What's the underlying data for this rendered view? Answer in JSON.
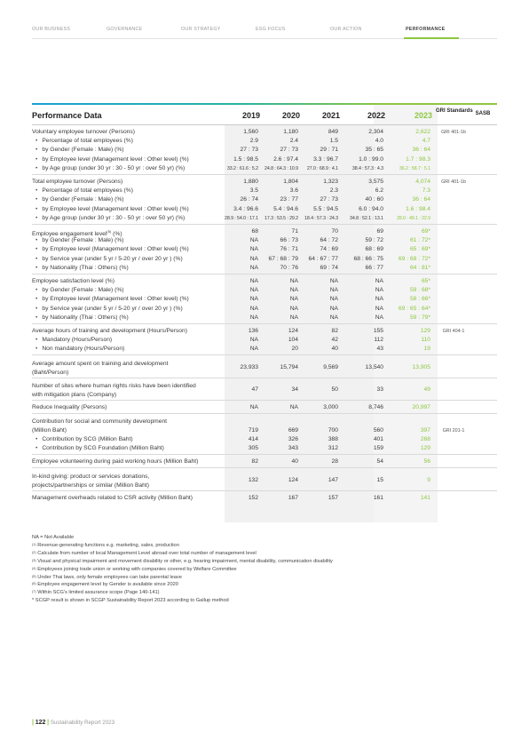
{
  "nav": {
    "items": [
      {
        "label": "OUR BUSINESS",
        "active": false
      },
      {
        "label": "GOVERNANCE",
        "active": false
      },
      {
        "label": "OUR STRATEGY",
        "active": false
      },
      {
        "label": "ESG FOCUS",
        "active": false
      },
      {
        "label": "OUR ACTION",
        "active": false
      },
      {
        "label": "PERFORMANCE",
        "active": true
      }
    ],
    "accent_color": "#8dc63f"
  },
  "table": {
    "header": {
      "title": "Performance Data",
      "years": [
        "2019",
        "2020",
        "2021",
        "2022",
        "2023"
      ],
      "gri": "GRI Standards",
      "sasb": "SASB"
    },
    "highlight_color": "#8dc63f",
    "groups": [
      {
        "rows": [
          {
            "label": "Voluntary employee turnover (Persons)",
            "sub": false,
            "values": [
              "1,560",
              "1,180",
              "849",
              "2,304",
              "2,622"
            ],
            "gri": "GRI 401-1b"
          },
          {
            "label": "Percentage of total employees (%)",
            "sub": true,
            "values": [
              "2.9",
              "2.4",
              "1.5",
              "4.0",
              "4.7"
            ]
          },
          {
            "label": "by Gender (Female : Male) (%)",
            "sub": true,
            "values": [
              "27 : 73",
              "27 : 73",
              "29 : 71",
              "35 : 65",
              "36 : 64"
            ]
          },
          {
            "label": "by Employee level (Management level : Other level) (%)",
            "sub": true,
            "values": [
              "1.5 : 98.5",
              "2.6 : 97.4",
              "3.3 : 96.7",
              "1.0 : 99.0",
              "1.7 : 98.3"
            ]
          },
          {
            "label": "by Age group (under 30 yr : 30 - 50 yr : over 50 yr) (%)",
            "sub": true,
            "small": true,
            "values": [
              "33.2 : 61.6 : 5.2",
              "24.8 : 64.3 : 10.9",
              "27.0 : 68.9 : 4.1",
              "38.4 : 57.3 : 4.3",
              "36.2 : 58.7 : 5.1"
            ]
          }
        ]
      },
      {
        "rows": [
          {
            "label": "Total employee turnover (Persons)",
            "sub": false,
            "values": [
              "1,880",
              "1,804",
              "1,323",
              "3,575",
              "4,074"
            ],
            "gri": "GRI 401-1b"
          },
          {
            "label": "Percentage of total employees (%)",
            "sub": true,
            "values": [
              "3.5",
              "3.6",
              "2.3",
              "6.2",
              "7.3"
            ]
          },
          {
            "label": "by Gender (Female : Male) (%)",
            "sub": true,
            "values": [
              "26 : 74",
              "23 : 77",
              "27 : 73",
              "40 : 60",
              "36 : 64"
            ]
          },
          {
            "label": "by Employee level (Management level : Other level) (%)",
            "sub": true,
            "values": [
              "3.4 : 96.6",
              "5.4 : 94.6",
              "5.5 : 94.5",
              "6.0 : 94.0",
              "1.6 : 98.4"
            ]
          },
          {
            "label": "by Age group (under 30 yr : 30 - 50 yr : over 50 yr) (%)",
            "sub": true,
            "small": true,
            "values": [
              "28.9 : 54.0 : 17.1",
              "17.3 : 53.5 : 29.2",
              "18.4 : 57.3 : 24.3",
              "34.8 : 52.1 : 13.1",
              "28.0 : 49.1 : 22.9"
            ]
          }
        ]
      },
      {
        "rows": [
          {
            "label": "Employee engagement level",
            "sup": "(5)",
            "label_suffix": " (%)",
            "sub": false,
            "values": [
              "68",
              "71",
              "70",
              "69",
              "69*"
            ]
          },
          {
            "label": "by Gender (Female : Male) (%)",
            "sub": true,
            "values": [
              "NA",
              "66 : 73",
              "64 : 72",
              "59 : 72",
              "61 : 72*"
            ]
          },
          {
            "label": "by Employee level (Management level : Other level) (%)",
            "sub": true,
            "values": [
              "NA",
              "76 : 71",
              "74 : 69",
              "68 : 69",
              "65 : 69*"
            ]
          },
          {
            "label": "by Service year (under 5 yr / 5-20 yr / over 20 yr ) (%)",
            "sub": true,
            "values": [
              "NA",
              "67 : 68 : 79",
              "64 : 67 : 77",
              "68 : 66 : 75",
              "69 : 68 : 72*"
            ]
          },
          {
            "label": "by Nationality (Thai : Others) (%)",
            "sub": true,
            "values": [
              "NA",
              "70 : 76",
              "69 : 74",
              "66 : 77",
              "64 : 81*"
            ]
          }
        ]
      },
      {
        "rows": [
          {
            "label": "Employee satisfaction level (%)",
            "sub": false,
            "values": [
              "NA",
              "NA",
              "NA",
              "NA",
              "65*"
            ]
          },
          {
            "label": "by Gender (Female : Male) (%)",
            "sub": true,
            "values": [
              "NA",
              "NA",
              "NA",
              "NA",
              "59 : 68*"
            ]
          },
          {
            "label": "by Employee level (Management level : Other level) (%)",
            "sub": true,
            "values": [
              "NA",
              "NA",
              "NA",
              "NA",
              "58 : 66*"
            ]
          },
          {
            "label": "by Service year (under 5 yr / 5-20 yr / over 20 yr ) (%)",
            "sub": true,
            "values": [
              "NA",
              "NA",
              "NA",
              "NA",
              "69 : 65 : 64*"
            ]
          },
          {
            "label": "by Nationality (Thai : Others) (%)",
            "sub": true,
            "values": [
              "NA",
              "NA",
              "NA",
              "NA",
              "59 : 79*"
            ]
          }
        ]
      },
      {
        "rows": [
          {
            "label": "Average hours of training and development (Hours/Person)",
            "sub": false,
            "values": [
              "136",
              "124",
              "82",
              "155",
              "129"
            ],
            "gri": "GRI 404-1"
          },
          {
            "label": "Mandatory (Hours/Person)",
            "sub": true,
            "values": [
              "NA",
              "104",
              "42",
              "112",
              "110"
            ]
          },
          {
            "label": "Non mandatory (Hours/Person)",
            "sub": true,
            "values": [
              "NA",
              "20",
              "40",
              "43",
              "19"
            ]
          }
        ]
      },
      {
        "rows": [
          {
            "label": "Average amount spent on training and development",
            "label2": "(Baht/Person)",
            "sub": false,
            "values": [
              "23,933",
              "15,794",
              "9,569",
              "13,540",
              "13,905"
            ]
          }
        ]
      },
      {
        "rows": [
          {
            "label": "Number of sites where human rights risks have been identified",
            "label2": "with mitigation plans (Company)",
            "sub": false,
            "values": [
              "47",
              "34",
              "50",
              "33",
              "49"
            ]
          }
        ]
      },
      {
        "rows": [
          {
            "label": "Reduce Inequality (Persons)",
            "sub": false,
            "values": [
              "NA",
              "NA",
              "3,000",
              "8,746",
              "20,997"
            ]
          }
        ]
      },
      {
        "rows": [
          {
            "label": "Contribution for social and community development",
            "sub": false,
            "values": [
              "",
              "",
              "",
              "",
              ""
            ]
          },
          {
            "label": "(Million Baht)",
            "sub": false,
            "values": [
              "719",
              "669",
              "700",
              "560",
              "397"
            ],
            "gri": "GRI 201-1"
          },
          {
            "label": "Contribution by SCG (Million Baht)",
            "sub": true,
            "values": [
              "414",
              "326",
              "388",
              "401",
              "268"
            ]
          },
          {
            "label": "Contribution by SCG Foundation (Million Baht)",
            "sub": true,
            "values": [
              "305",
              "343",
              "312",
              "159",
              "129"
            ]
          }
        ]
      },
      {
        "rows": [
          {
            "label": "Employee volunteering during paid working hours (Million Baht)",
            "sub": false,
            "values": [
              "82",
              "40",
              "28",
              "54",
              "56"
            ]
          }
        ]
      },
      {
        "rows": [
          {
            "label": "In-kind giving: product or services donations,",
            "label2": "projects/partnerships or similar (Million Baht)",
            "sub": false,
            "values": [
              "132",
              "124",
              "147",
              "15",
              "9"
            ]
          }
        ]
      },
      {
        "rows": [
          {
            "label": "Management overheads related to CSR activity (Million Baht)",
            "sub": false,
            "values": [
              "152",
              "167",
              "157",
              "161",
              "141"
            ]
          }
        ]
      }
    ]
  },
  "notes": [
    {
      "text": "NA = Not Available"
    },
    {
      "sup": "(1)",
      "text": " Revenue-generating functions e.g. marketing, sales, production"
    },
    {
      "sup": "(2)",
      "text": " Calculate from number of local Management Level abroad over total number of management level"
    },
    {
      "sup": "(3)",
      "text": " Visual and physical impairment and movement disability or other, e.g. hearing impairment, mental disability, communication disability"
    },
    {
      "sup": "(4)",
      "text": " Employees joining trade union or working with companies covered by Welfare Committee"
    },
    {
      "sup": "(5)",
      "text": " Under Thai laws, only female employees can take parental leave"
    },
    {
      "sup": "(6)",
      "text": " Employee engagement level by Gender is available since 2020"
    },
    {
      "sup": "(7)",
      "text": " Within SCG's limited assurance scope (Page 140-141)"
    },
    {
      "text": "* SCGP result is shown in SCGP Sustainability Report 2023 according to Gallup method"
    }
  ],
  "footer": {
    "page": "122",
    "report": "Sustainability Report 2023"
  }
}
